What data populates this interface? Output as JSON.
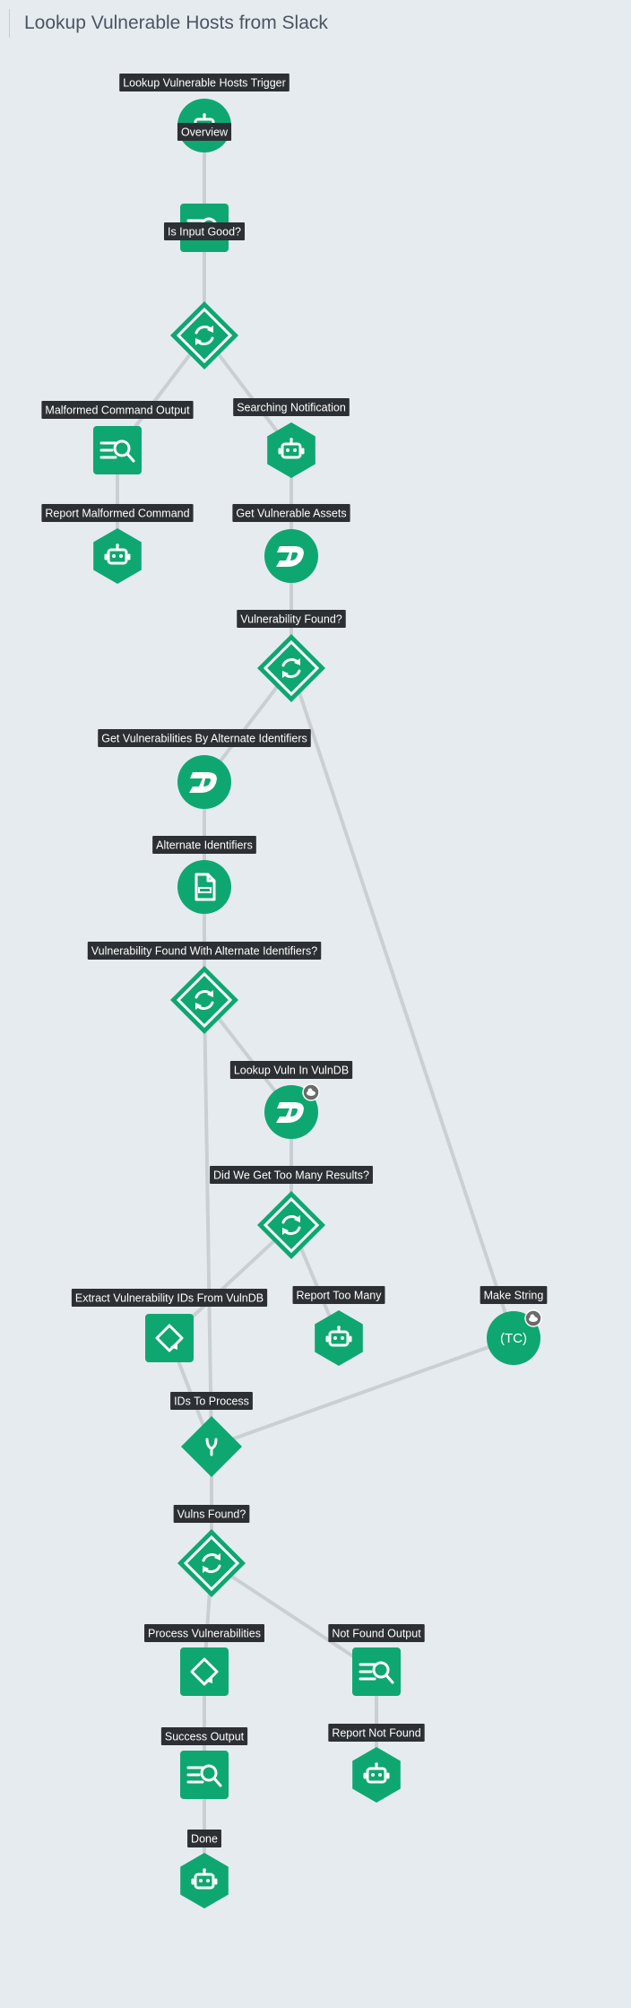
{
  "page": {
    "title": "Lookup Vulnerable Hosts from Slack"
  },
  "colors": {
    "node": "#0fa771",
    "edge": "#c9cfd3",
    "label_bg": "#2c2f33",
    "label_text": "#ffffff",
    "badge": "#6b6b6b"
  },
  "nodes": [
    {
      "id": "trigger",
      "label": "Lookup Vulnerable Hosts Trigger",
      "shape": "circle",
      "icon": "robot-icon"
    },
    {
      "id": "overview",
      "label": "Overview",
      "shape": "square",
      "icon": "search-list-icon"
    },
    {
      "id": "input_good",
      "label": "Is Input Good?",
      "shape": "diamond",
      "icon": "cycle-icon"
    },
    {
      "id": "malformed_out",
      "label": "Malformed Command Output",
      "shape": "square",
      "icon": "search-list-icon"
    },
    {
      "id": "searching",
      "label": "Searching Notification",
      "shape": "hexagon",
      "icon": "robot-icon"
    },
    {
      "id": "report_malformed",
      "label": "Report Malformed Command",
      "shape": "hexagon",
      "icon": "robot-icon"
    },
    {
      "id": "get_assets",
      "label": "Get Vulnerable Assets",
      "shape": "circle",
      "icon": "d-logo-icon"
    },
    {
      "id": "vuln_found",
      "label": "Vulnerability Found?",
      "shape": "diamond",
      "icon": "cycle-icon"
    },
    {
      "id": "get_alt",
      "label": "Get Vulnerabilities By Alternate Identifiers",
      "shape": "circle",
      "icon": "d-logo-icon"
    },
    {
      "id": "alt_ids",
      "label": "Alternate Identifiers",
      "shape": "circle",
      "icon": "csv-file-icon"
    },
    {
      "id": "vuln_found_alt",
      "label": "Vulnerability Found With Alternate Identifiers?",
      "shape": "diamond",
      "icon": "cycle-icon"
    },
    {
      "id": "lookup_vulndb",
      "label": "Lookup Vuln In VulnDB",
      "shape": "circle",
      "icon": "d-logo-icon",
      "badge": true
    },
    {
      "id": "too_many",
      "label": "Did We Get Too Many Results?",
      "shape": "diamond",
      "icon": "cycle-icon"
    },
    {
      "id": "extract_ids",
      "label": "Extract Vulnerability IDs From VulnDB",
      "shape": "square",
      "icon": "transform-icon"
    },
    {
      "id": "report_too_many",
      "label": "Report Too Many",
      "shape": "hexagon",
      "icon": "robot-icon"
    },
    {
      "id": "make_string",
      "label": "Make String",
      "shape": "circle",
      "icon": "tc-text",
      "icon_text": "(TC)",
      "badge": true
    },
    {
      "id": "ids_process",
      "label": "IDs To Process",
      "shape": "diamond-solid",
      "icon": "merge-icon"
    },
    {
      "id": "vulns_found",
      "label": "Vulns Found?",
      "shape": "diamond",
      "icon": "cycle-icon"
    },
    {
      "id": "process_vulns",
      "label": "Process Vulnerabilities",
      "shape": "square",
      "icon": "transform-icon"
    },
    {
      "id": "not_found_out",
      "label": "Not Found Output",
      "shape": "square",
      "icon": "search-list-icon"
    },
    {
      "id": "success_out",
      "label": "Success Output",
      "shape": "square",
      "icon": "search-list-icon"
    },
    {
      "id": "report_not_found",
      "label": "Report Not Found",
      "shape": "hexagon",
      "icon": "robot-icon"
    },
    {
      "id": "done",
      "label": "Done",
      "shape": "hexagon",
      "icon": "robot-icon"
    }
  ],
  "edges": [
    [
      "trigger",
      "overview"
    ],
    [
      "overview",
      "input_good"
    ],
    [
      "input_good",
      "malformed_out"
    ],
    [
      "input_good",
      "searching"
    ],
    [
      "malformed_out",
      "report_malformed"
    ],
    [
      "searching",
      "get_assets"
    ],
    [
      "get_assets",
      "vuln_found"
    ],
    [
      "vuln_found",
      "get_alt"
    ],
    [
      "vuln_found",
      "make_string"
    ],
    [
      "get_alt",
      "alt_ids"
    ],
    [
      "alt_ids",
      "vuln_found_alt"
    ],
    [
      "vuln_found_alt",
      "lookup_vulndb"
    ],
    [
      "vuln_found_alt",
      "ids_process"
    ],
    [
      "lookup_vulndb",
      "too_many"
    ],
    [
      "too_many",
      "extract_ids"
    ],
    [
      "too_many",
      "report_too_many"
    ],
    [
      "extract_ids",
      "ids_process"
    ],
    [
      "make_string",
      "ids_process"
    ],
    [
      "ids_process",
      "vulns_found"
    ],
    [
      "vulns_found",
      "process_vulns"
    ],
    [
      "vulns_found",
      "not_found_out"
    ],
    [
      "process_vulns",
      "success_out"
    ],
    [
      "success_out",
      "done"
    ],
    [
      "not_found_out",
      "report_not_found"
    ]
  ]
}
